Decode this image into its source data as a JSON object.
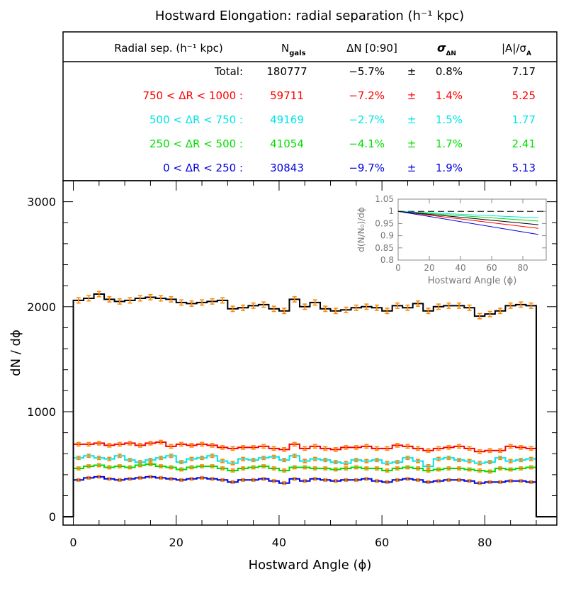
{
  "title": "Hostward Elongation: radial separation (h⁻¹ kpc)",
  "table": {
    "headers": {
      "radial": "Radial sep. (h⁻¹ kpc)",
      "ngals_main": "N",
      "ngals_sub": "gals",
      "dn": "ΔN [0:90]",
      "sigma_main": "σ",
      "sigma_sub": "ΔN",
      "ratio_main": "|A|/σ",
      "ratio_sub": "A"
    },
    "rows": [
      {
        "label": "Total:",
        "n": "180777",
        "dn": "−5.7%",
        "pm": "±",
        "sigma": "0.8%",
        "ratio": "7.17",
        "color": "#000000"
      },
      {
        "label": "750 < ΔR < 1000 :",
        "n": "59711",
        "dn": "−7.2%",
        "pm": "±",
        "sigma": "1.4%",
        "ratio": "5.25",
        "color": "#ff0000"
      },
      {
        "label": "500 < ΔR < 750 :",
        "n": "49169",
        "dn": "−2.7%",
        "pm": "±",
        "sigma": "1.5%",
        "ratio": "1.77",
        "color": "#00e5e5"
      },
      {
        "label": "250 < ΔR < 500 :",
        "n": "41054",
        "dn": "−4.1%",
        "pm": "±",
        "sigma": "1.7%",
        "ratio": "2.41",
        "color": "#00e000"
      },
      {
        "label": "0 < ΔR < 250 :",
        "n": "30843",
        "dn": "−9.7%",
        "pm": "±",
        "sigma": "1.9%",
        "ratio": "5.13",
        "color": "#0000dd"
      }
    ]
  },
  "chart_data": {
    "type": "line",
    "subtype": "histogram",
    "xlabel": "Hostward Angle (ϕ)",
    "ylabel": "dN / dϕ",
    "xlim": [
      -2,
      94
    ],
    "ylim": [
      -80,
      3200
    ],
    "xticks": [
      0,
      20,
      40,
      60,
      80
    ],
    "yticks": [
      0,
      1000,
      2000,
      3000
    ],
    "bin_edges": [
      0,
      2,
      4,
      6,
      8,
      10,
      12,
      14,
      16,
      18,
      20,
      22,
      24,
      26,
      28,
      30,
      32,
      34,
      36,
      38,
      40,
      42,
      44,
      46,
      48,
      50,
      52,
      54,
      56,
      58,
      60,
      62,
      64,
      66,
      68,
      70,
      72,
      74,
      76,
      78,
      80,
      82,
      84,
      86,
      88,
      90
    ],
    "errorbar_color": "#ff8800",
    "series": [
      {
        "color": "#000000",
        "errors": [
          25,
          25,
          25,
          25,
          25,
          25,
          25,
          25,
          25,
          25,
          25,
          25,
          25,
          25,
          25,
          25,
          25,
          25,
          25,
          25,
          25,
          25,
          25,
          25,
          25,
          25,
          25,
          25,
          25,
          25,
          25,
          25,
          25,
          25,
          25,
          25,
          25,
          25,
          25,
          25,
          25,
          25,
          25,
          25,
          25
        ],
        "values": [
          2060,
          2080,
          2120,
          2070,
          2050,
          2060,
          2080,
          2090,
          2080,
          2070,
          2040,
          2030,
          2040,
          2050,
          2060,
          1980,
          1990,
          2010,
          2020,
          1980,
          1960,
          2070,
          2000,
          2040,
          1980,
          1960,
          1970,
          1990,
          2000,
          1990,
          1960,
          2010,
          1990,
          2030,
          1960,
          2000,
          2010,
          2010,
          1990,
          1910,
          1930,
          1960,
          2010,
          2020,
          2010
        ]
      },
      {
        "color": "#ff0000",
        "errors": [
          17,
          17,
          17,
          17,
          17,
          17,
          17,
          17,
          17,
          17,
          17,
          17,
          17,
          17,
          17,
          17,
          17,
          17,
          17,
          17,
          17,
          17,
          17,
          17,
          17,
          17,
          17,
          17,
          17,
          17,
          17,
          17,
          17,
          17,
          17,
          17,
          17,
          17,
          17,
          17,
          17,
          17,
          17,
          17,
          17
        ],
        "values": [
          690,
          690,
          700,
          680,
          690,
          700,
          680,
          700,
          710,
          670,
          690,
          680,
          690,
          680,
          660,
          650,
          660,
          660,
          670,
          650,
          640,
          690,
          650,
          670,
          650,
          640,
          660,
          660,
          670,
          650,
          650,
          680,
          670,
          650,
          630,
          650,
          660,
          670,
          650,
          620,
          630,
          630,
          670,
          660,
          650
        ]
      },
      {
        "color": "#00e5e5",
        "errors": [
          15,
          15,
          15,
          15,
          15,
          15,
          15,
          15,
          15,
          15,
          15,
          15,
          15,
          15,
          15,
          15,
          15,
          15,
          15,
          15,
          15,
          15,
          15,
          15,
          15,
          15,
          15,
          15,
          15,
          15,
          15,
          15,
          15,
          15,
          15,
          15,
          15,
          15,
          15,
          15,
          15,
          15,
          15,
          15,
          15
        ],
        "values": [
          560,
          580,
          560,
          550,
          580,
          540,
          520,
          540,
          560,
          580,
          520,
          550,
          560,
          580,
          530,
          510,
          550,
          540,
          560,
          570,
          540,
          580,
          530,
          550,
          540,
          520,
          510,
          540,
          530,
          540,
          510,
          520,
          560,
          530,
          480,
          550,
          560,
          540,
          530,
          510,
          520,
          560,
          530,
          540,
          550
        ]
      },
      {
        "color": "#00dd00",
        "errors": [
          14,
          14,
          14,
          14,
          14,
          14,
          14,
          14,
          14,
          14,
          14,
          14,
          14,
          14,
          14,
          14,
          14,
          14,
          14,
          14,
          14,
          14,
          14,
          14,
          14,
          14,
          14,
          14,
          14,
          14,
          14,
          14,
          14,
          14,
          14,
          14,
          14,
          14,
          14,
          14,
          14,
          14,
          14,
          14,
          14
        ],
        "values": [
          460,
          480,
          490,
          470,
          480,
          470,
          490,
          500,
          480,
          470,
          450,
          470,
          480,
          480,
          460,
          440,
          460,
          470,
          480,
          460,
          440,
          470,
          470,
          460,
          460,
          450,
          460,
          470,
          460,
          460,
          440,
          460,
          470,
          460,
          440,
          450,
          460,
          460,
          450,
          440,
          430,
          460,
          450,
          460,
          470
        ]
      },
      {
        "color": "#0000dd",
        "errors": [
          12,
          12,
          12,
          12,
          12,
          12,
          12,
          12,
          12,
          12,
          12,
          12,
          12,
          12,
          12,
          12,
          12,
          12,
          12,
          12,
          12,
          12,
          12,
          12,
          12,
          12,
          12,
          12,
          12,
          12,
          12,
          12,
          12,
          12,
          12,
          12,
          12,
          12,
          12,
          12,
          12,
          12,
          12,
          12,
          12
        ],
        "values": [
          350,
          370,
          380,
          360,
          350,
          360,
          370,
          380,
          370,
          360,
          350,
          360,
          370,
          360,
          350,
          330,
          350,
          350,
          360,
          340,
          320,
          360,
          340,
          360,
          350,
          340,
          350,
          350,
          360,
          340,
          330,
          350,
          360,
          350,
          330,
          340,
          350,
          350,
          340,
          320,
          330,
          330,
          340,
          340,
          330
        ]
      }
    ],
    "inset": {
      "xlabel": "Hostward Angle (ϕ)",
      "ylabel": "d(N/N₀)/dϕ",
      "xlim": [
        0,
        95
      ],
      "ylim": [
        0.8,
        1.05
      ],
      "xticks": [
        0,
        20,
        40,
        60,
        80
      ],
      "yticks": [
        0.8,
        0.85,
        0.9,
        0.95,
        1,
        1.05
      ],
      "ytick_labels": [
        "0.8",
        "0.85",
        "0.9",
        "0.95",
        "1",
        "1.05"
      ],
      "reference_line": 1.0,
      "lines": [
        {
          "color": "#000000",
          "x": [
            0,
            90
          ],
          "y": [
            1.0,
            0.945
          ]
        },
        {
          "color": "#ff0000",
          "x": [
            0,
            90
          ],
          "y": [
            1.0,
            0.93
          ]
        },
        {
          "color": "#00e5e5",
          "x": [
            0,
            90
          ],
          "y": [
            1.0,
            0.973
          ]
        },
        {
          "color": "#00dd00",
          "x": [
            0,
            90
          ],
          "y": [
            1.0,
            0.96
          ]
        },
        {
          "color": "#0000dd",
          "x": [
            0,
            90
          ],
          "y": [
            1.0,
            0.905
          ]
        }
      ]
    }
  }
}
